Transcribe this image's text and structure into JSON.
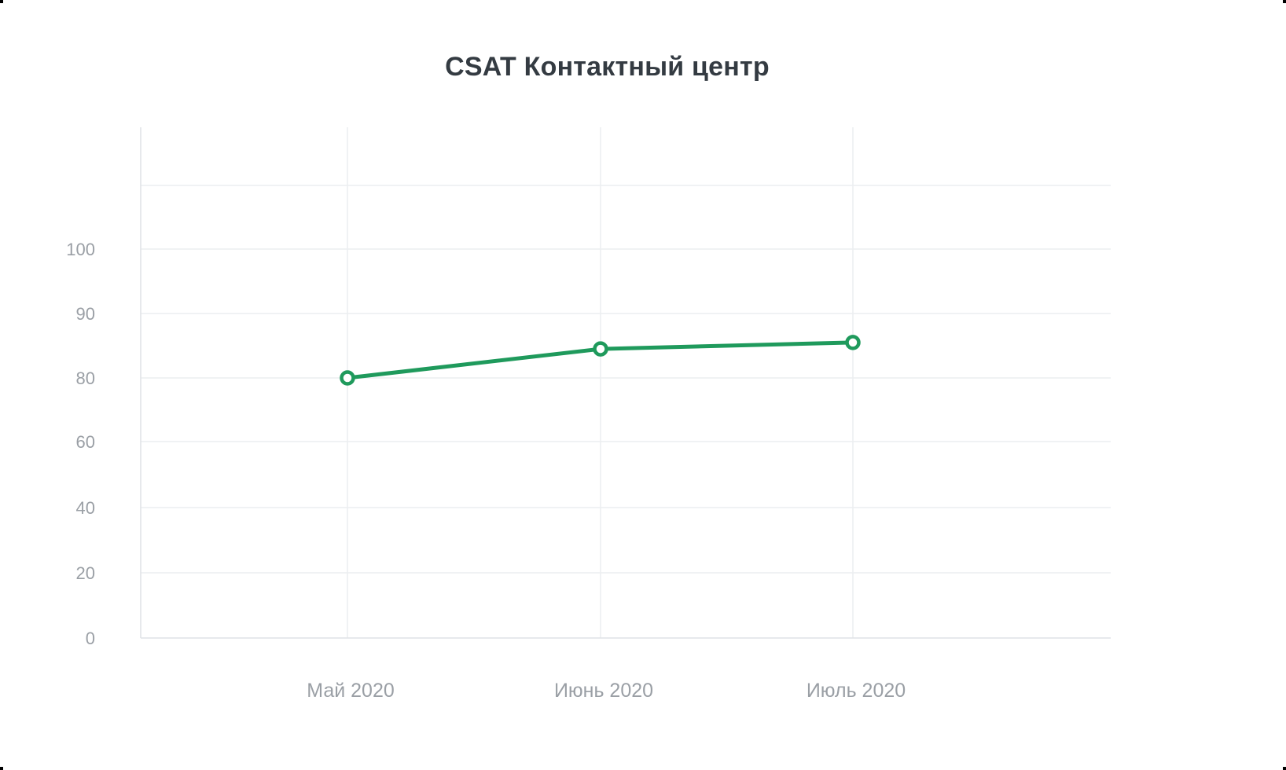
{
  "chart_data": {
    "type": "line",
    "title": "CSAT Контактный центр",
    "xlabel": "",
    "ylabel": "",
    "categories": [
      "Май 2020",
      "Июнь 2020",
      "Июль 2020"
    ],
    "y_ticks": [
      "0",
      "20",
      "40",
      "60",
      "80",
      "90",
      "100"
    ],
    "series": [
      {
        "values": [
          80,
          84.5,
          85.5
        ],
        "color": "#1f9a5c"
      }
    ],
    "grid": true,
    "legend": "none"
  }
}
